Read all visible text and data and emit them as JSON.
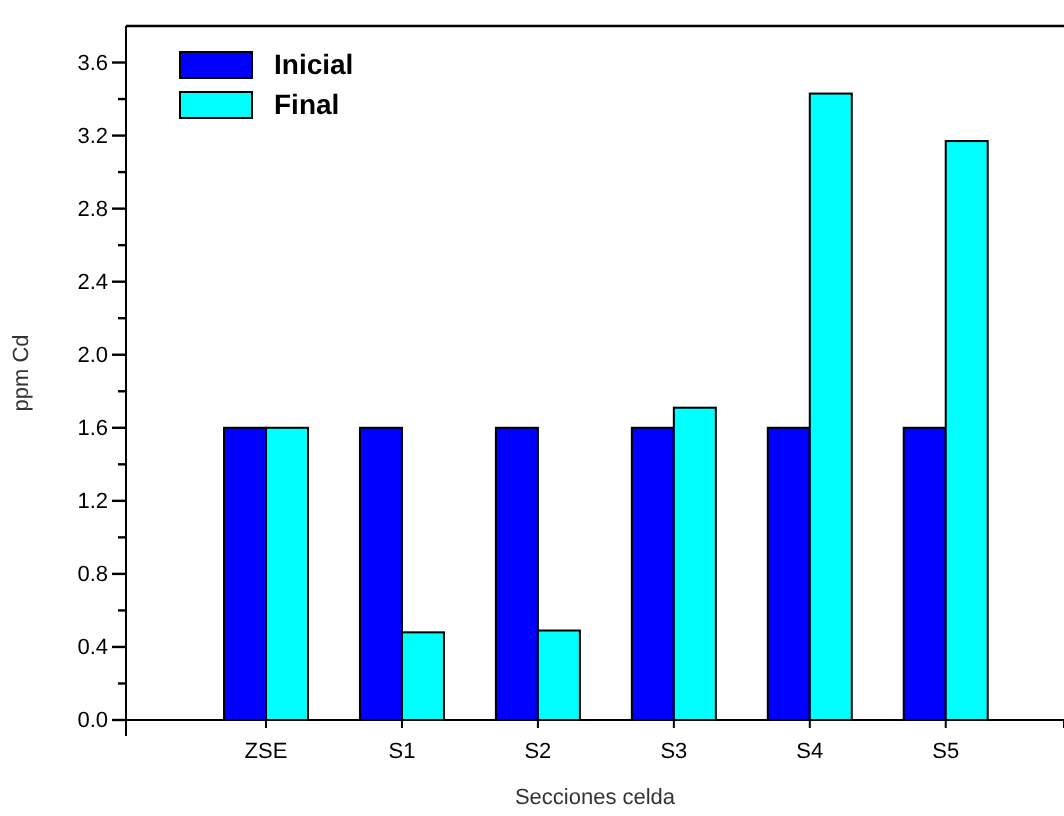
{
  "chart_data": {
    "type": "bar",
    "xlabel": "Secciones celda",
    "ylabel": "ppm Cd",
    "categories": [
      "ZSE",
      "S1",
      "S2",
      "S3",
      "S4",
      "S5"
    ],
    "series": [
      {
        "name": "Inicial",
        "color": "#0000ff",
        "values": [
          1.6,
          1.6,
          1.6,
          1.6,
          1.6,
          1.6
        ]
      },
      {
        "name": "Final",
        "color": "#00ffff",
        "values": [
          1.6,
          0.48,
          0.49,
          1.71,
          3.43,
          3.17
        ]
      }
    ],
    "ylim": [
      0,
      3.8
    ],
    "yticks": [
      {
        "value": 0,
        "label": "0.0"
      },
      {
        "value": 0.2,
        "label": null
      },
      0.4,
      {
        "value": 0.6,
        "label": null
      },
      0.8,
      {
        "value": 1,
        "label": null
      },
      1.2,
      {
        "value": 1.4,
        "label": null
      },
      1.6,
      {
        "value": 1.8,
        "label": null
      },
      {
        "value": 2,
        "label": "2.0"
      },
      {
        "value": 2.2,
        "label": null
      },
      2.4,
      {
        "value": 2.6,
        "label": null
      },
      2.8,
      {
        "value": 3,
        "label": null
      },
      3.2,
      {
        "value": 3.4,
        "label": null
      },
      3.6
    ],
    "legend": "top left",
    "grid": false
  }
}
